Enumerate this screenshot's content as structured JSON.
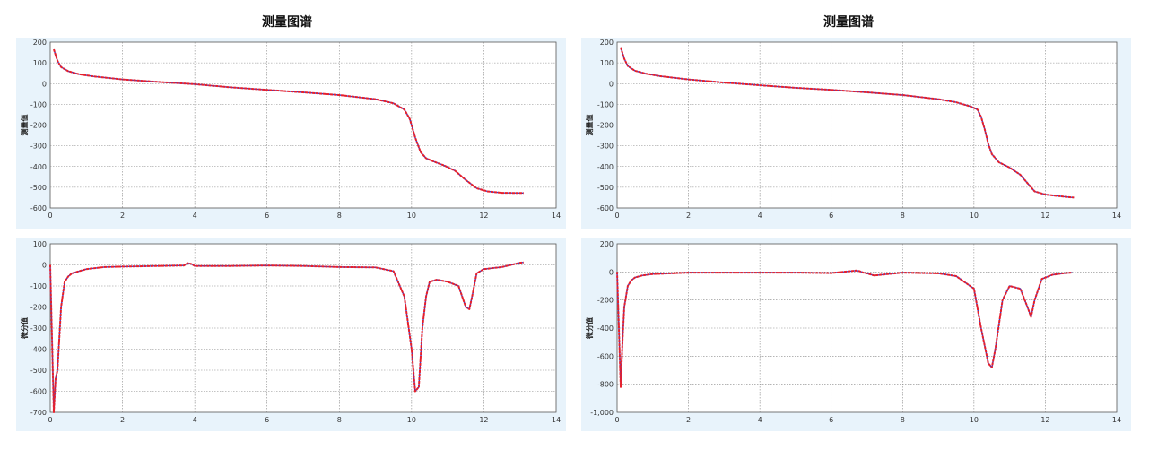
{
  "panels": [
    {
      "title": "测量图谱"
    },
    {
      "title": "测量图谱"
    }
  ],
  "colors": {
    "line_main": "#e8202a",
    "line_under": "#3a3acb",
    "grid": "#888888",
    "plot_bg": "#ffffff",
    "panel_bg": "#e8f3fb"
  },
  "chart_data": [
    {
      "type": "line",
      "title": "测量图谱",
      "ylabel": "测量值",
      "xlabel": "",
      "xlim": [
        0,
        14
      ],
      "ylim": [
        -600,
        200
      ],
      "xticks": [
        "0",
        "2",
        "4",
        "6",
        "8",
        "10",
        "12",
        "14"
      ],
      "yticks": [
        "200",
        "100",
        "0",
        "-100",
        "-200",
        "-300",
        "-400",
        "-500",
        "-600"
      ],
      "grid": true,
      "x": [
        0.1,
        0.2,
        0.3,
        0.5,
        0.8,
        1.2,
        2,
        3,
        4,
        5,
        6,
        7,
        8,
        8.5,
        9,
        9.5,
        9.8,
        9.95,
        10.1,
        10.25,
        10.4,
        10.6,
        10.9,
        11.2,
        11.5,
        11.8,
        12.1,
        12.5,
        13.1
      ],
      "y": [
        165,
        110,
        80,
        60,
        45,
        35,
        20,
        8,
        -3,
        -18,
        -30,
        -42,
        -55,
        -65,
        -75,
        -95,
        -125,
        -170,
        -260,
        -330,
        -360,
        -375,
        -395,
        -420,
        -465,
        -505,
        -520,
        -527,
        -528
      ]
    },
    {
      "type": "line",
      "title": "",
      "ylabel": "微分值",
      "xlabel": "",
      "xlim": [
        0,
        14
      ],
      "ylim": [
        -700,
        100
      ],
      "xticks": [
        "0",
        "2",
        "4",
        "6",
        "8",
        "10",
        "12",
        "14"
      ],
      "yticks": [
        "100",
        "0",
        "-100",
        "-200",
        "-300",
        "-400",
        "-500",
        "-600",
        "-700"
      ],
      "grid": true,
      "x": [
        0,
        0.05,
        0.1,
        0.15,
        0.2,
        0.3,
        0.4,
        0.5,
        0.6,
        0.8,
        1,
        1.5,
        2,
        3,
        3.7,
        3.8,
        3.9,
        4,
        5,
        6,
        7,
        8,
        9,
        9.5,
        9.8,
        10,
        10.1,
        10.2,
        10.3,
        10.4,
        10.5,
        10.7,
        11,
        11.3,
        11.5,
        11.6,
        11.7,
        11.8,
        12,
        12.5,
        13,
        13.1
      ],
      "y": [
        0,
        -350,
        -700,
        -540,
        -500,
        -200,
        -80,
        -55,
        -40,
        -30,
        -20,
        -10,
        -8,
        -5,
        -3,
        8,
        5,
        -5,
        -5,
        -3,
        -5,
        -10,
        -12,
        -30,
        -150,
        -400,
        -600,
        -580,
        -300,
        -150,
        -80,
        -70,
        -80,
        -100,
        -200,
        -210,
        -130,
        -40,
        -20,
        -10,
        10,
        12
      ]
    },
    {
      "type": "line",
      "title": "测量图谱",
      "ylabel": "测量值",
      "xlabel": "",
      "xlim": [
        0,
        14
      ],
      "ylim": [
        -600,
        200
      ],
      "xticks": [
        "0",
        "2",
        "4",
        "6",
        "8",
        "10",
        "12",
        "14"
      ],
      "yticks": [
        "200",
        "100",
        "0",
        "-100",
        "-200",
        "-300",
        "-400",
        "-500",
        "-600"
      ],
      "grid": true,
      "x": [
        0.1,
        0.2,
        0.3,
        0.5,
        0.8,
        1.2,
        2,
        3,
        4,
        5,
        6,
        7,
        8,
        8.5,
        9,
        9.5,
        9.9,
        10.1,
        10.2,
        10.3,
        10.4,
        10.5,
        10.7,
        11,
        11.3,
        11.5,
        11.7,
        12,
        12.5,
        12.8
      ],
      "y": [
        175,
        120,
        85,
        62,
        48,
        36,
        20,
        5,
        -8,
        -20,
        -30,
        -42,
        -55,
        -65,
        -75,
        -90,
        -110,
        -125,
        -160,
        -220,
        -290,
        -340,
        -380,
        -405,
        -440,
        -480,
        -520,
        -535,
        -545,
        -550
      ]
    },
    {
      "type": "line",
      "title": "",
      "ylabel": "微分值",
      "xlabel": "",
      "xlim": [
        0,
        14
      ],
      "ylim": [
        -1000,
        200
      ],
      "xticks": [
        "0",
        "2",
        "4",
        "6",
        "8",
        "10",
        "12",
        "14"
      ],
      "yticks": [
        "200",
        "0",
        "-200",
        "-400",
        "-600",
        "-800",
        "-1,000"
      ],
      "grid": true,
      "x": [
        0,
        0.05,
        0.1,
        0.15,
        0.2,
        0.3,
        0.4,
        0.5,
        0.7,
        1,
        1.5,
        2,
        3,
        4,
        5,
        6,
        6.7,
        6.8,
        6.9,
        7,
        7.2,
        8,
        9,
        9.5,
        10,
        10.2,
        10.4,
        10.5,
        10.6,
        10.8,
        11,
        11.3,
        11.5,
        11.6,
        11.7,
        11.9,
        12.2,
        12.5,
        12.75
      ],
      "y": [
        0,
        -400,
        -820,
        -500,
        -250,
        -100,
        -60,
        -40,
        -25,
        -15,
        -10,
        -5,
        -5,
        -5,
        -5,
        -8,
        10,
        5,
        -5,
        -10,
        -25,
        -5,
        -10,
        -30,
        -120,
        -400,
        -650,
        -680,
        -550,
        -200,
        -100,
        -120,
        -250,
        -320,
        -200,
        -50,
        -20,
        -10,
        -5
      ]
    }
  ]
}
